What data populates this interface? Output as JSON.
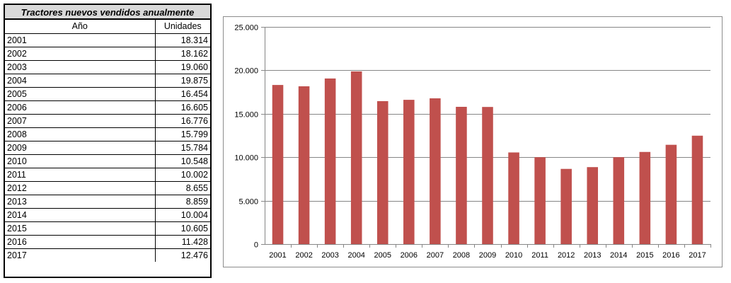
{
  "table": {
    "title": "Tractores nuevos vendidos anualmente",
    "headers": [
      "Año",
      "Unidades"
    ],
    "rows": [
      [
        "2001",
        "18.314"
      ],
      [
        "2002",
        "18.162"
      ],
      [
        "2003",
        "19.060"
      ],
      [
        "2004",
        "19.875"
      ],
      [
        "2005",
        "16.454"
      ],
      [
        "2006",
        "16.605"
      ],
      [
        "2007",
        "16.776"
      ],
      [
        "2008",
        "15.799"
      ],
      [
        "2009",
        "15.784"
      ],
      [
        "2010",
        "10.548"
      ],
      [
        "2011",
        "10.002"
      ],
      [
        "2012",
        "8.655"
      ],
      [
        "2013",
        "8.859"
      ],
      [
        "2014",
        "10.004"
      ],
      [
        "2015",
        "10.605"
      ],
      [
        "2016",
        "11.428"
      ],
      [
        "2017",
        "12.476"
      ]
    ]
  },
  "chart_data": {
    "type": "bar",
    "categories": [
      "2001",
      "2002",
      "2003",
      "2004",
      "2005",
      "2006",
      "2007",
      "2008",
      "2009",
      "2010",
      "2011",
      "2012",
      "2013",
      "2014",
      "2015",
      "2016",
      "2017"
    ],
    "values": [
      18314,
      18162,
      19060,
      19875,
      16454,
      16605,
      16776,
      15799,
      15784,
      10548,
      10002,
      8655,
      8859,
      10004,
      10605,
      11428,
      12476
    ],
    "ylim": [
      0,
      25000
    ],
    "yticks": [
      0,
      5000,
      10000,
      15000,
      20000,
      25000
    ],
    "ytick_labels": [
      "0",
      "5.000",
      "10.000",
      "15.000",
      "20.000",
      "25.000"
    ],
    "grid": true,
    "title": "",
    "xlabel": "",
    "ylabel": "",
    "bar_color": "#c0504d",
    "grid_color": "#868686"
  }
}
